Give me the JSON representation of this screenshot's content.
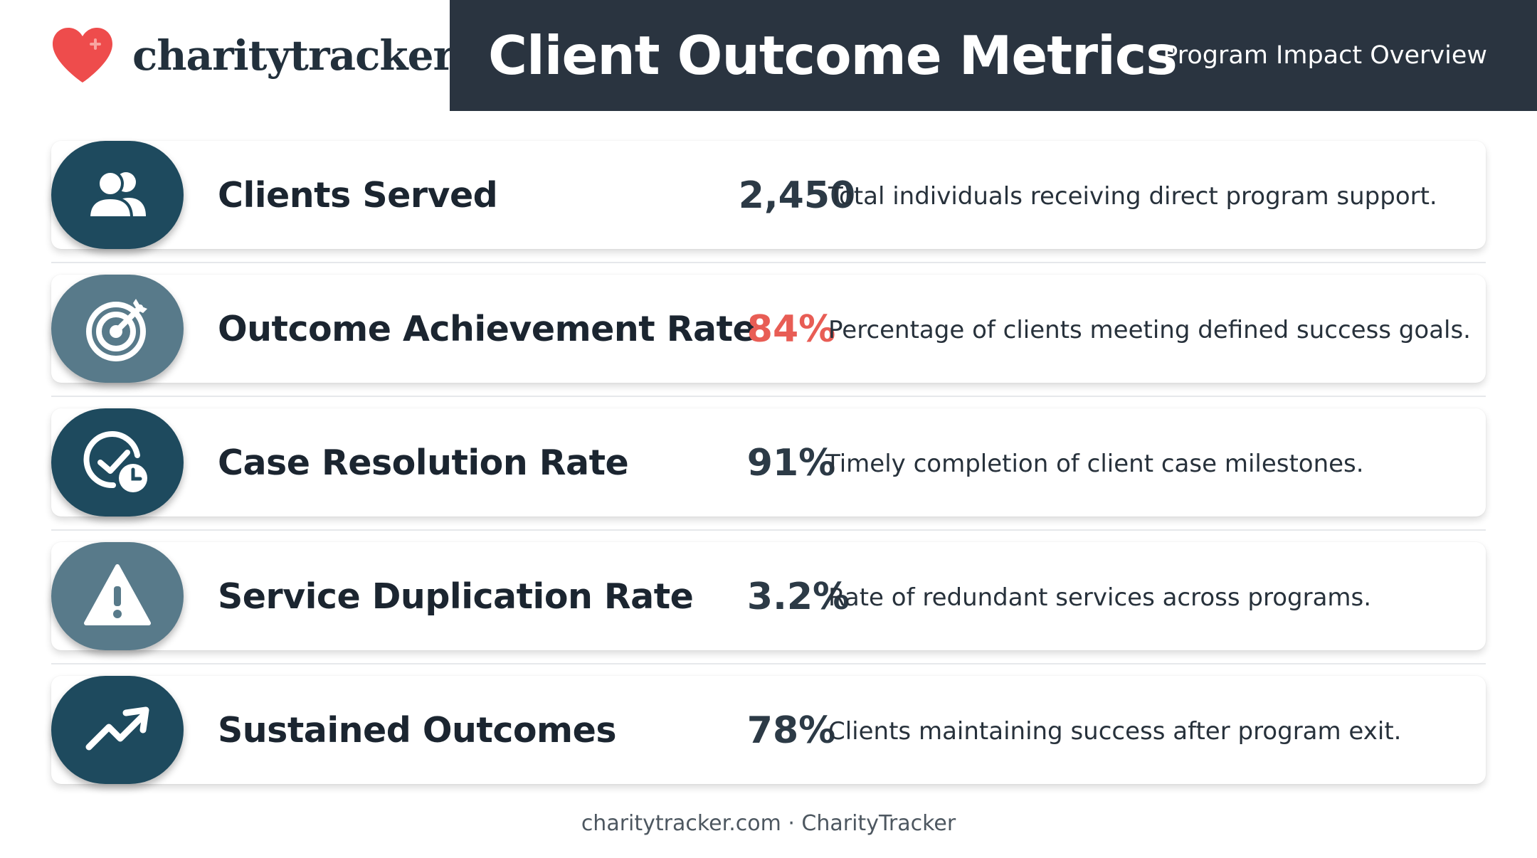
{
  "brand": {
    "name": "charitytracker",
    "logo_icon": "heart-icon",
    "logo_color": "#ee4c4c"
  },
  "header": {
    "title": "Client Outcome Metrics",
    "subtitle": "Program Impact Overview"
  },
  "metrics": [
    {
      "icon": "users-icon",
      "label": "Clients Served",
      "value": "2,450",
      "description": "Total individuals receiving direct program support."
    },
    {
      "icon": "target-icon",
      "label": "Outcome Achievement Rate",
      "value": "84%",
      "description": "Percentage of clients meeting defined success goals.",
      "value_color": "#e85d55"
    },
    {
      "icon": "clock-check-icon",
      "label": "Case Resolution Rate",
      "value": "91%",
      "description": "Timely completion of client case milestones."
    },
    {
      "icon": "warning-icon",
      "label": "Service Duplication Rate",
      "value": "3.2%",
      "description": "Rate of redundant services across programs."
    },
    {
      "icon": "trending-up-icon",
      "label": "Sustained Outcomes",
      "value": "78%",
      "description": "Clients maintaining success after program exit."
    }
  ],
  "footer": {
    "text": "charitytracker.com · CharityTracker"
  }
}
